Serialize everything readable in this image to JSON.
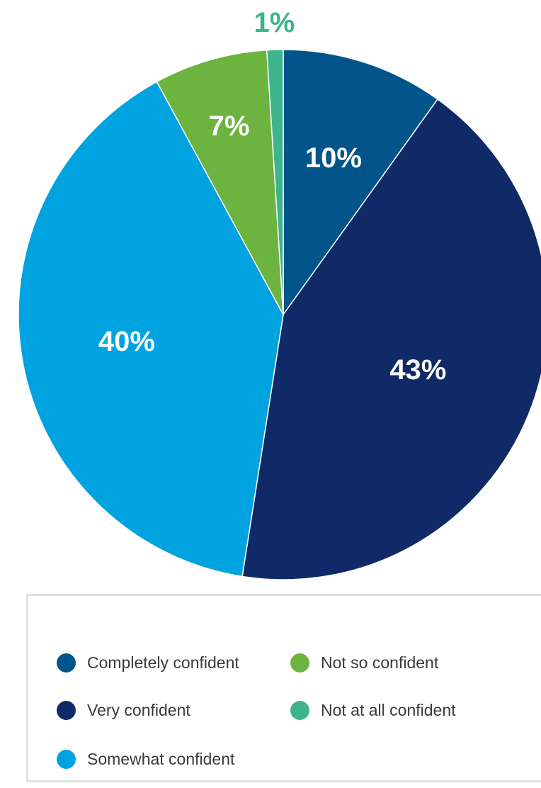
{
  "chart_data": {
    "type": "pie",
    "title": "",
    "slices": [
      {
        "name": "Completely confident",
        "value": 10,
        "label": "10%",
        "color": "#02558B",
        "label_color": "#ffffff"
      },
      {
        "name": "Very confident",
        "value": 43,
        "label": "43%",
        "color": "#0F2A67",
        "label_color": "#ffffff"
      },
      {
        "name": "Somewhat confident",
        "value": 40,
        "label": "40%",
        "color": "#00A3E0",
        "label_color": "#ffffff"
      },
      {
        "name": "Not so confident",
        "value": 7,
        "label": "7%",
        "color": "#6DB33F",
        "label_color": "#ffffff"
      },
      {
        "name": "Not at all confident",
        "value": 1,
        "label": "1%",
        "color": "#3DB48C",
        "label_color": "#3DB48C"
      }
    ],
    "legend": {
      "placement": "bottom",
      "items": [
        {
          "label": "Completely confident",
          "color": "#02558B"
        },
        {
          "label": "Very confident",
          "color": "#0F2A67"
        },
        {
          "label": "Somewhat confident",
          "color": "#00A3E0"
        },
        {
          "label": "Not so confident",
          "color": "#6DB33F"
        },
        {
          "label": "Not at all confident",
          "color": "#3DB48C"
        }
      ]
    }
  }
}
